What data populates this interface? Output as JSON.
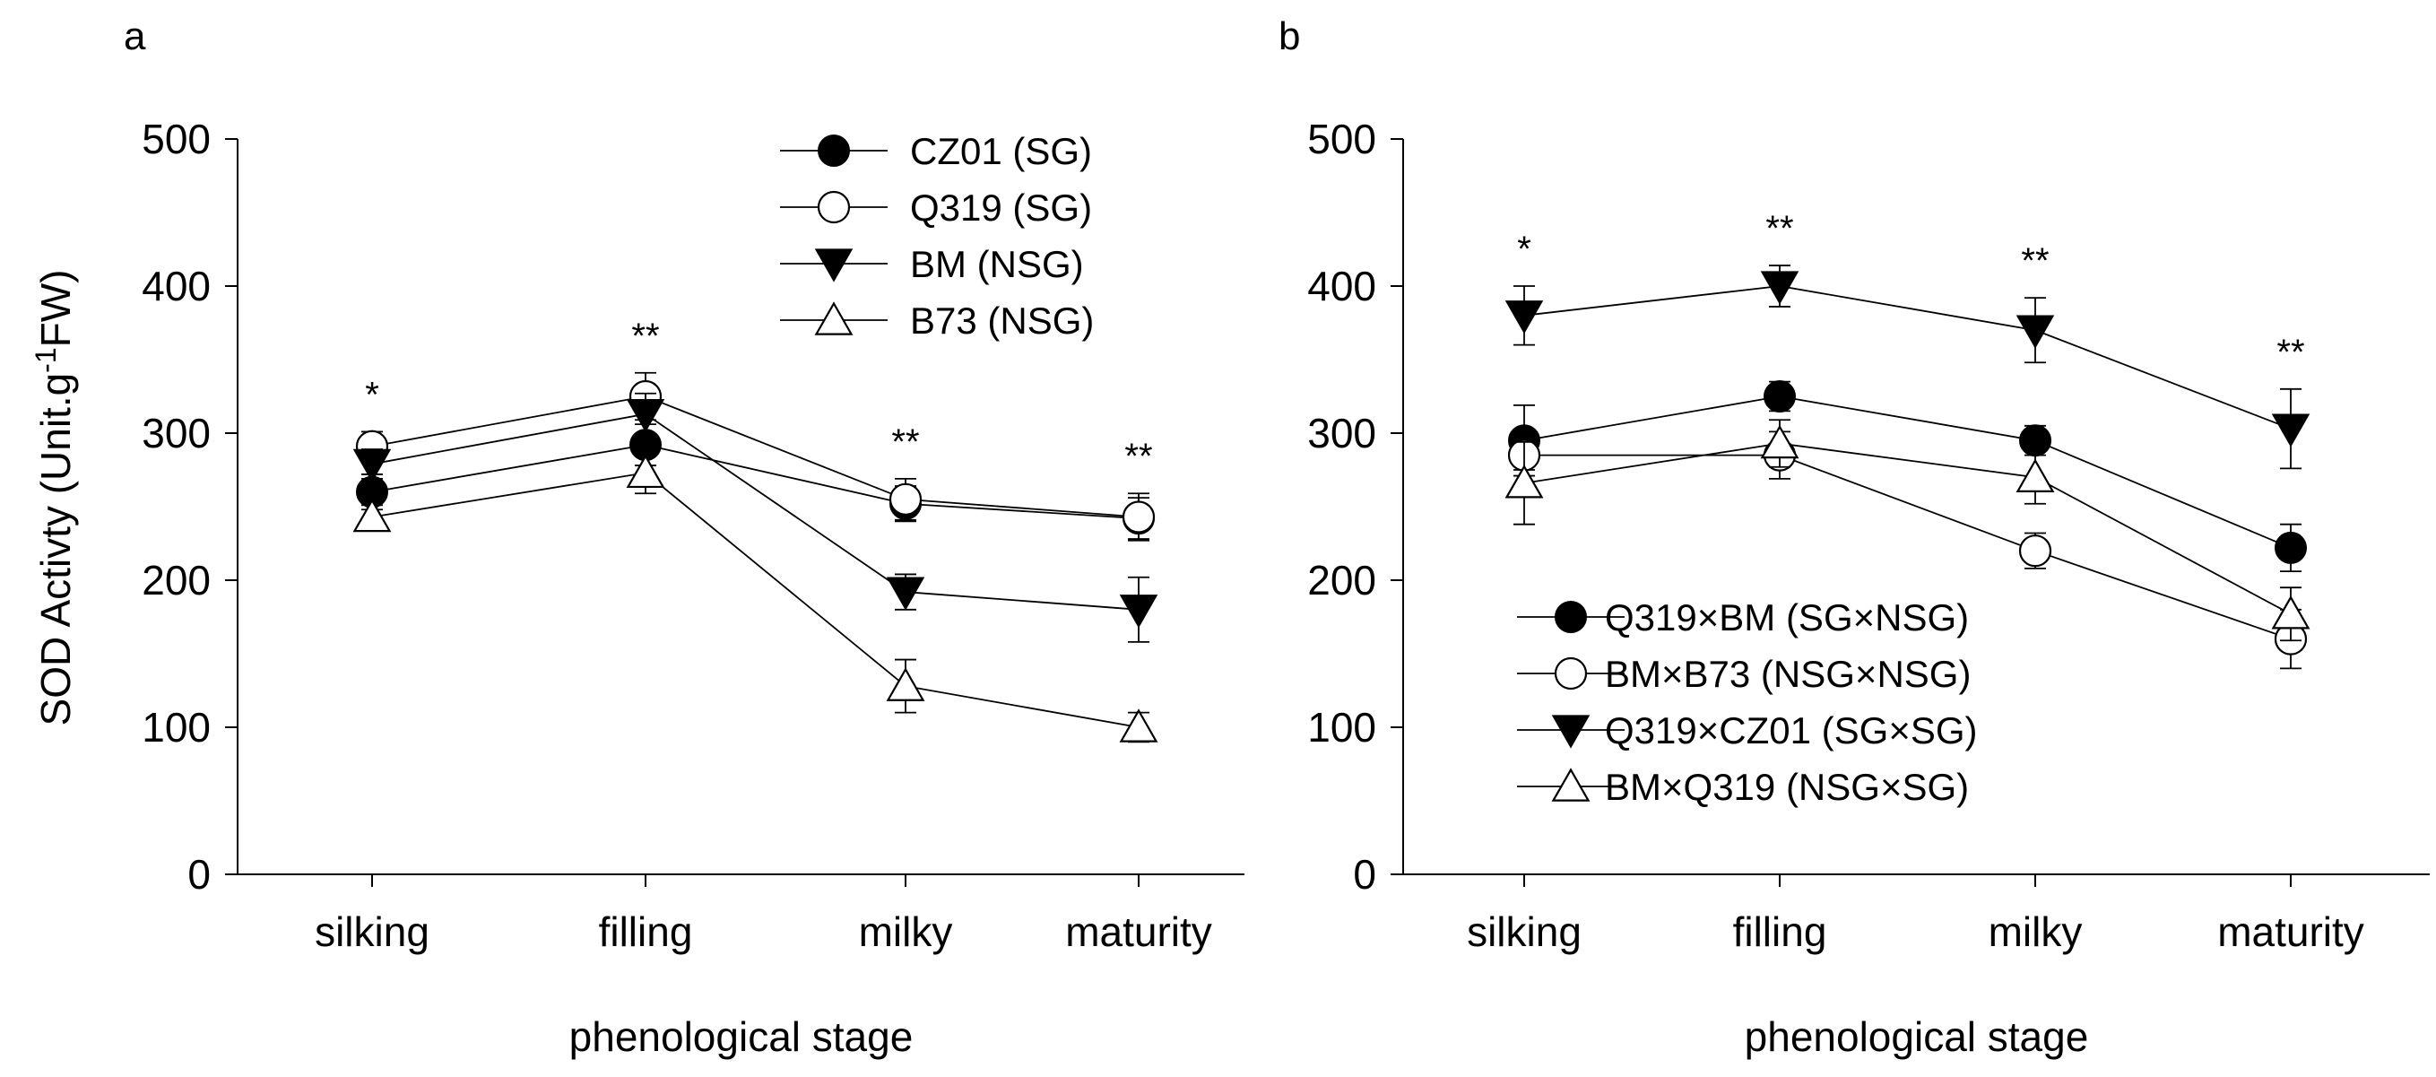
{
  "chart_data": [
    {
      "type": "line",
      "panel_label": "a",
      "categories": [
        "silking",
        "filling",
        "milky",
        "maturity"
      ],
      "xlabel": "phenological stage",
      "ylabel": {
        "prefix": "SOD Activty (Unit.g",
        "superscript": "-1",
        "suffix": "FW)"
      },
      "ylim": [
        0,
        500
      ],
      "yticks": [
        0,
        100,
        200,
        300,
        400,
        500
      ],
      "significance": [
        "*",
        "**",
        "**",
        "**"
      ],
      "legend_position": "top-right",
      "series": [
        {
          "name": "CZ01 (SG)",
          "marker": "filled-circle",
          "values": [
            260,
            292,
            252,
            242
          ],
          "errors": [
            12,
            14,
            12,
            14
          ]
        },
        {
          "name": "Q319 (SG)",
          "marker": "open-circle",
          "values": [
            291,
            325,
            255,
            243
          ],
          "errors": [
            10,
            16,
            14,
            16
          ]
        },
        {
          "name": "BM (NSG)",
          "marker": "filled-triangle-down",
          "values": [
            279,
            313,
            192,
            180
          ],
          "errors": [
            10,
            14,
            12,
            22
          ]
        },
        {
          "name": "B73 (NSG)",
          "marker": "open-triangle-up",
          "values": [
            243,
            273,
            128,
            100
          ],
          "errors": [
            8,
            14,
            18,
            10
          ]
        }
      ]
    },
    {
      "type": "line",
      "panel_label": "b",
      "categories": [
        "silking",
        "filling",
        "milky",
        "maturity"
      ],
      "xlabel": "phenological stage",
      "ylim": [
        0,
        500
      ],
      "yticks": [
        0,
        100,
        200,
        300,
        400,
        500
      ],
      "significance": [
        "*",
        "**",
        "**",
        "**"
      ],
      "legend_position": "bottom-left",
      "series": [
        {
          "name": "Q319×BM (SG×NSG)",
          "marker": "filled-circle",
          "values": [
            295,
            325,
            295,
            222
          ],
          "errors": [
            24,
            10,
            10,
            16
          ]
        },
        {
          "name": "BM×B73 (NSG×NSG)",
          "marker": "open-circle",
          "values": [
            285,
            285,
            220,
            160
          ],
          "errors": [
            10,
            16,
            12,
            20
          ]
        },
        {
          "name": "Q319×CZ01 (SG×SG)",
          "marker": "filled-triangle-down",
          "values": [
            380,
            400,
            370,
            303
          ],
          "errors": [
            20,
            14,
            22,
            27
          ]
        },
        {
          "name": "BM×Q319 (NSG×SG)",
          "marker": "open-triangle-up",
          "values": [
            266,
            293,
            270,
            177
          ],
          "errors": [
            28,
            16,
            18,
            18
          ]
        }
      ]
    }
  ]
}
